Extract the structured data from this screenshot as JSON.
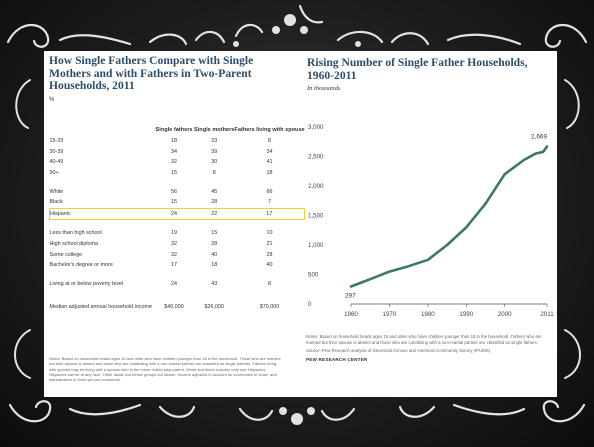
{
  "slide": {
    "background": "#1e1e1e",
    "ornament_color": "#e2e2e2"
  },
  "left_panel": {
    "title": "How Single Fathers Compare with Single Mothers and with Fathers in Two-Parent Households, 2011",
    "unit": "%",
    "columns": [
      "Single fathers",
      "Single mothers",
      "Fathers living with spouse"
    ],
    "rows": [
      {
        "label": "15-29",
        "values": [
          "18",
          "23",
          "8"
        ]
      },
      {
        "label": "30-39",
        "values": [
          "34",
          "39",
          "34"
        ]
      },
      {
        "label": "40-49",
        "values": [
          "32",
          "30",
          "41"
        ]
      },
      {
        "label": "50+",
        "values": [
          "15",
          "8",
          "18"
        ]
      },
      {
        "label": "White",
        "values": [
          "56",
          "45",
          "66"
        ]
      },
      {
        "label": "Black",
        "values": [
          "15",
          "28",
          "7"
        ]
      },
      {
        "label": "Hispanic",
        "values": [
          "24",
          "22",
          "17"
        ]
      },
      {
        "label": "Less than high school",
        "values": [
          "19",
          "15",
          "10"
        ]
      },
      {
        "label": "High school diploma",
        "values": [
          "32",
          "28",
          "21"
        ]
      },
      {
        "label": "Some college",
        "values": [
          "32",
          "40",
          "28"
        ]
      },
      {
        "label": "Bachelor's degree or more",
        "values": [
          "17",
          "18",
          "40"
        ]
      },
      {
        "label": "Living at or below poverty level",
        "values": [
          "24",
          "43",
          "8"
        ]
      }
    ],
    "income_row": {
      "label": "Median adjusted annual household income",
      "values": [
        "$40,000",
        "$26,000",
        "$70,000"
      ]
    },
    "highlight_row": "Hispanic",
    "highlight_color": "#f3d12a",
    "notes": "Notes: Based on household heads ages 15 and older who have children younger than 18 in the household. Those who are married but their spouse is absent and those who are cohabiting with a non-marital partner are classified as single parents. Fathers living with spouse may be living with a spouse who is the minor child's step-parent. White and black includes only non-Hispanics. Hispanics can be of any race. Other racial and ethnic groups not shown. Income adjusted to account for economies of scale, and standardized to three-person household."
  },
  "right_panel": {
    "title": "Rising Number of Single Father Households, 1960-2011",
    "subtitle": "In thousands",
    "notes": "Notes: Based on household heads ages 15 and older who have children younger than 18 in the household. Fathers who are married but their spouse is absent and those who are cohabiting with a non-marital partner are classified as single fathers.",
    "source": "Source: Pew Research analysis of Decennial Census and American Community Survey (IPUMS)",
    "brand": "PEW RESEARCH CENTER"
  },
  "chart_data": {
    "type": "line",
    "title": "Rising Number of Single Father Households, 1960-2011",
    "subtitle": "In thousands",
    "x": [
      1960,
      1965,
      1970,
      1975,
      1980,
      1985,
      1990,
      1995,
      2000,
      2005,
      2008,
      2010,
      2011
    ],
    "series": [
      {
        "values": [
          297,
          420,
          550,
          640,
          750,
          1000,
          1300,
          1700,
          2200,
          2440,
          2550,
          2580,
          2669
        ]
      }
    ],
    "point_labels": [
      {
        "x": 1960,
        "y": 297,
        "text": "297"
      },
      {
        "x": 2011,
        "y": 2669,
        "text": "2,669"
      }
    ],
    "x_ticks": [
      "1960",
      "1970",
      "1980",
      "1990",
      "2000",
      "2011"
    ],
    "y_ticks": [
      "0",
      "500",
      "1,000",
      "1,500",
      "2,000",
      "2,500",
      "3,000"
    ],
    "xlim": [
      1960,
      2011
    ],
    "ylim": [
      0,
      3000
    ],
    "line_color": "#3c7a5c",
    "grid": false
  }
}
